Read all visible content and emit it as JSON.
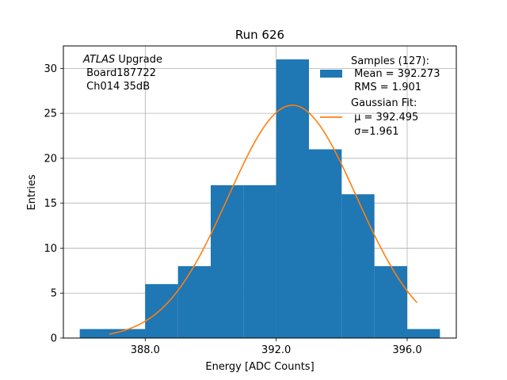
{
  "chart_data": {
    "type": "bar",
    "title": "Run 626",
    "xlabel": "Energy [ADC Counts]",
    "ylabel": "Entries",
    "xlim": [
      385.5,
      397.5
    ],
    "ylim": [
      0,
      32.5
    ],
    "xticks": [
      388.0,
      392.0,
      396.0
    ],
    "xtick_labels": [
      "388.0",
      "392.0",
      "396.0"
    ],
    "yticks": [
      0,
      5,
      10,
      15,
      20,
      25,
      30
    ],
    "ytick_labels": [
      "0",
      "5",
      "10",
      "15",
      "20",
      "25",
      "30"
    ],
    "grid": true,
    "bins": [
      {
        "x0": 386,
        "x1": 387,
        "count": 1
      },
      {
        "x0": 387,
        "x1": 388,
        "count": 1
      },
      {
        "x0": 388,
        "x1": 389,
        "count": 6
      },
      {
        "x0": 389,
        "x1": 390,
        "count": 8
      },
      {
        "x0": 390,
        "x1": 391,
        "count": 17
      },
      {
        "x0": 391,
        "x1": 392,
        "count": 17
      },
      {
        "x0": 392,
        "x1": 393,
        "count": 31
      },
      {
        "x0": 393,
        "x1": 394,
        "count": 21
      },
      {
        "x0": 394,
        "x1": 395,
        "count": 16
      },
      {
        "x0": 395,
        "x1": 396,
        "count": 8
      },
      {
        "x0": 396,
        "x1": 397,
        "count": 1
      }
    ],
    "fit": {
      "mu": 392.495,
      "sigma": 1.961,
      "amplitude": 25.9,
      "x_range": [
        386.9,
        396.3
      ]
    },
    "bar_color": "#1f77b4",
    "fit_color": "#ff7f0e",
    "annotation_lines": [
      "ATLAS Upgrade",
      " Board187722",
      " Ch014 35dB"
    ],
    "legend": {
      "location": "upper right",
      "samples_lines": [
        "Samples (127):",
        " Mean = 392.273",
        " RMS = 1.901"
      ],
      "fit_lines": [
        "Gaussian Fit:",
        " μ = 392.495",
        " σ=1.961"
      ]
    }
  }
}
